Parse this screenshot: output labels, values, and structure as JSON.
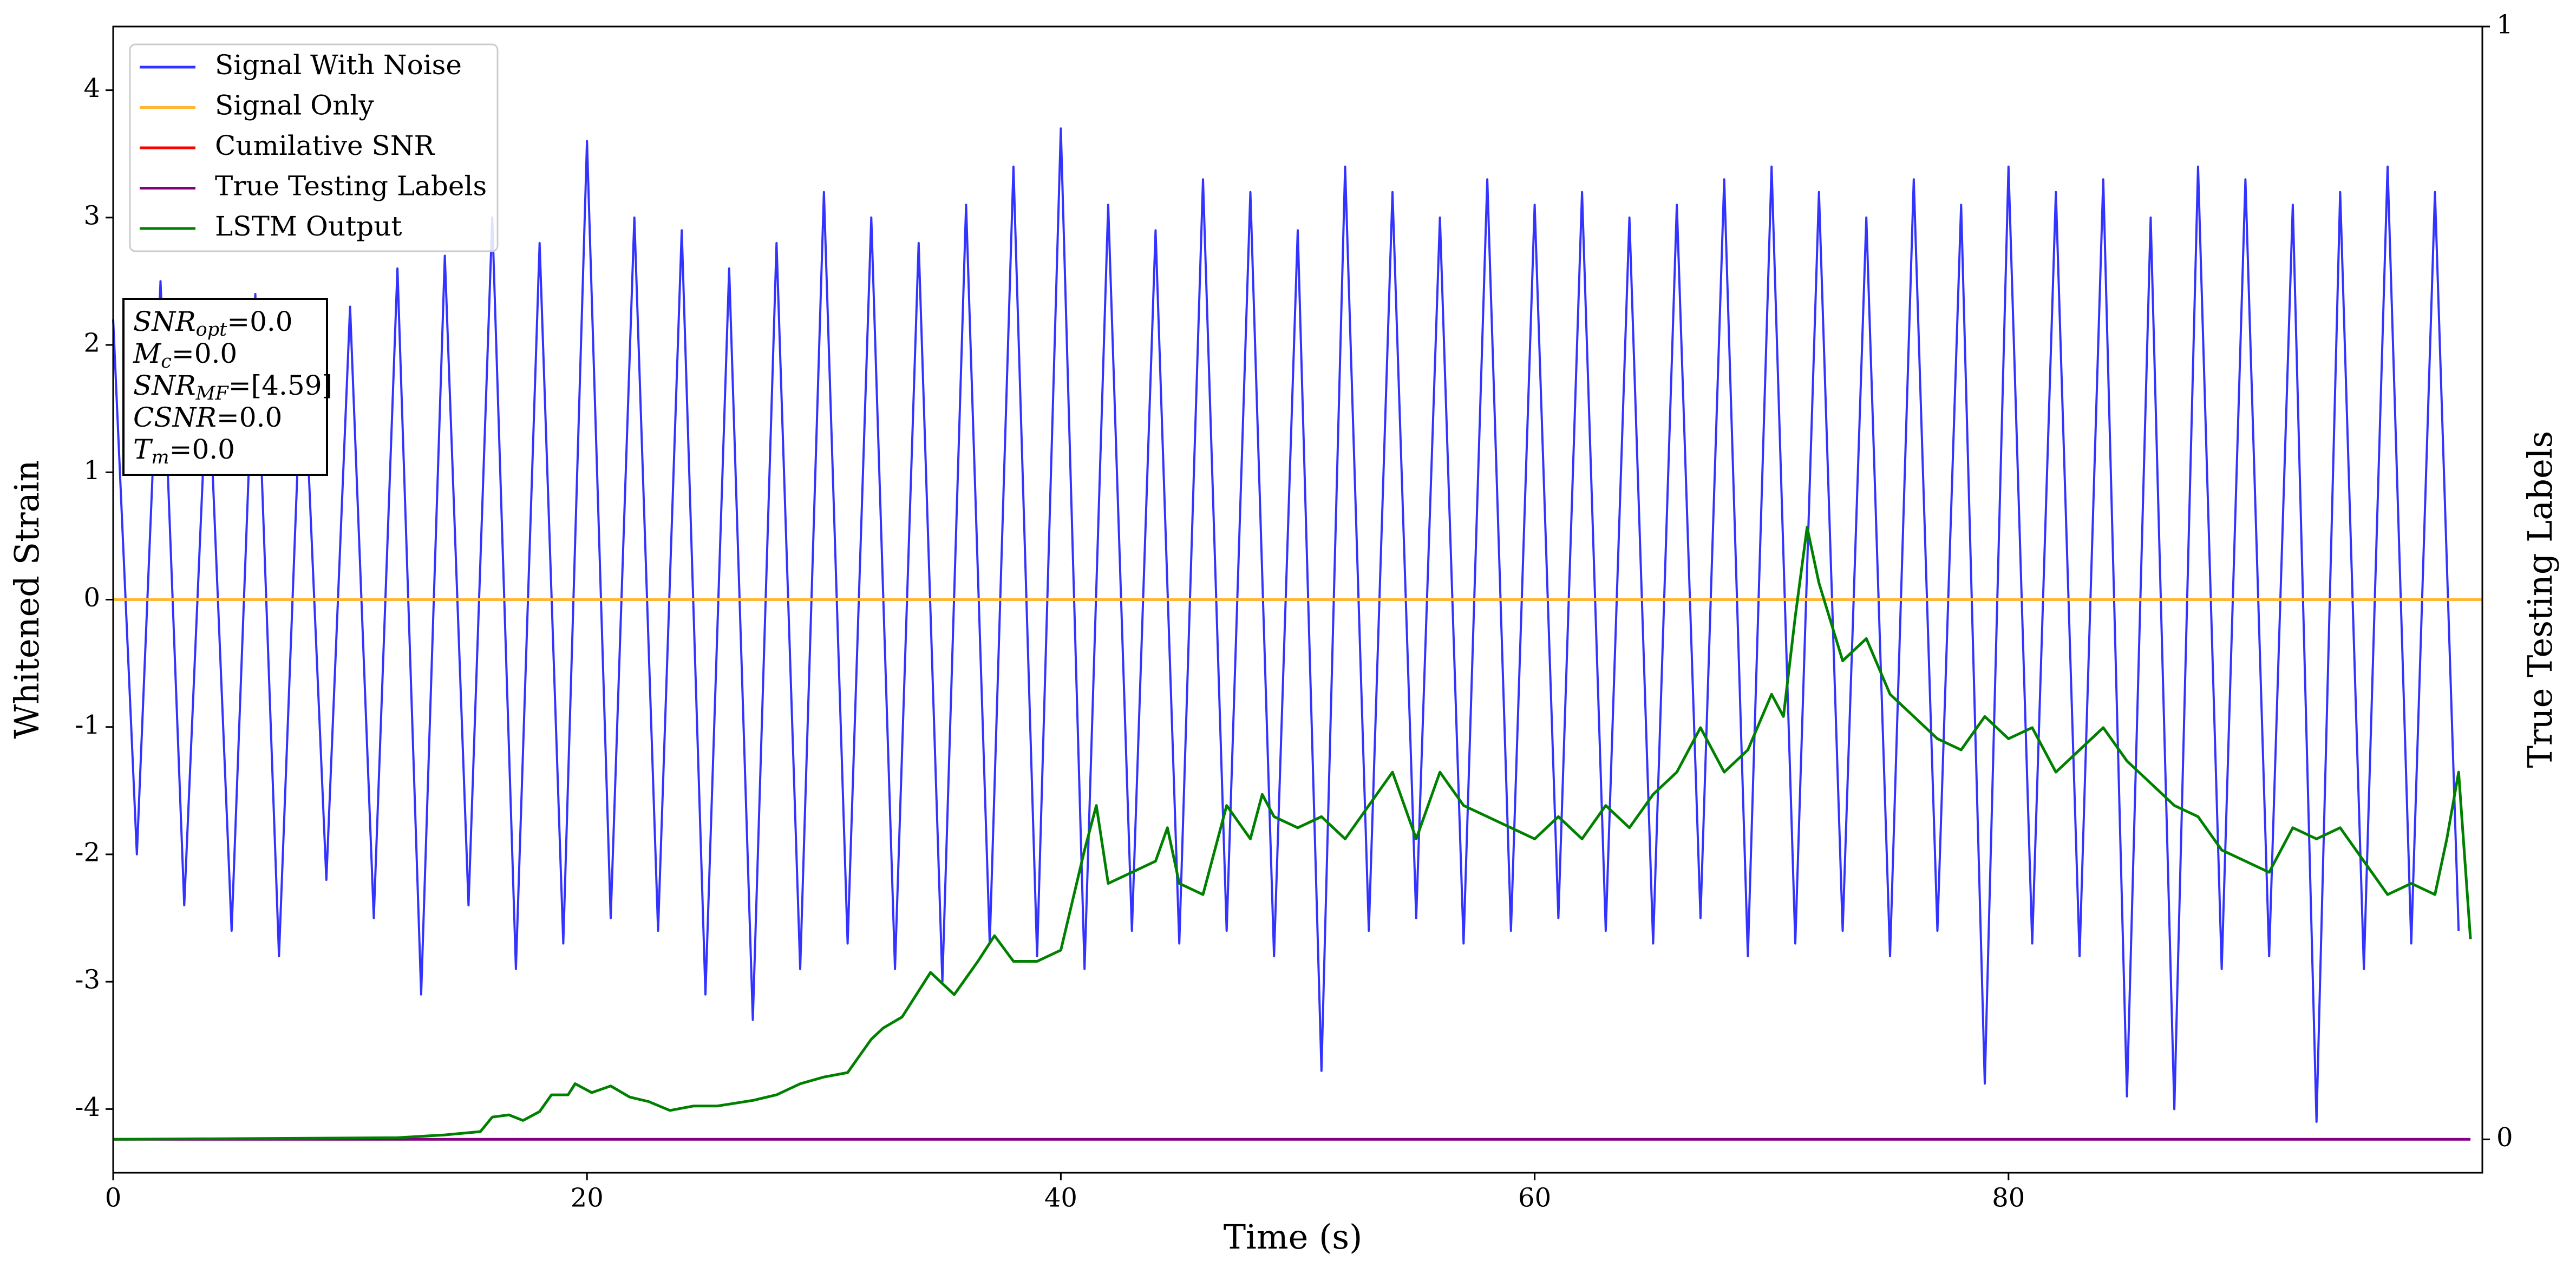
{
  "chart_data": {
    "type": "line",
    "xlabel": "Time (s)",
    "ylabel": "Whitened Strain",
    "y2label": "True Testing Labels",
    "xlim": [
      0,
      100
    ],
    "xticks": [
      0,
      20,
      40,
      60,
      80
    ],
    "ylim": [
      -4.5,
      4.5
    ],
    "yticks": [
      -4,
      -3,
      -2,
      -1,
      0,
      1,
      2,
      3,
      4
    ],
    "y2lim": [
      -0.03,
      1
    ],
    "y2ticks": [
      0,
      1
    ],
    "legend": "upper left",
    "annotations": [
      {
        "base": "SNR",
        "sub": "opt",
        "rest": "=0.0"
      },
      {
        "base": "M",
        "sub": "c",
        "rest": "=0.0"
      },
      {
        "base": "SNR",
        "sub": "MF",
        "rest": "=[4.59]"
      },
      {
        "base": "CSNR",
        "sub": null,
        "rest": "=0.0"
      },
      {
        "base": "T",
        "sub": "m",
        "rest": "=0.0"
      }
    ],
    "series": [
      {
        "name": "Signal With Noise",
        "color": "#3333ff",
        "axis": "y",
        "x": [
          0,
          1,
          2,
          3,
          4,
          5,
          6,
          7,
          8,
          9,
          10,
          11,
          12,
          13,
          14,
          15,
          16,
          17,
          18,
          19,
          20,
          21,
          22,
          23,
          24,
          25,
          26,
          27,
          28,
          29,
          30,
          31,
          32,
          33,
          34,
          35,
          36,
          37,
          38,
          39,
          40,
          41,
          42,
          43,
          44,
          45,
          46,
          47,
          48,
          49,
          50,
          51,
          52,
          53,
          54,
          55,
          56,
          57,
          58,
          59,
          60,
          61,
          62,
          63,
          64,
          65,
          66,
          67,
          68,
          69,
          70,
          71,
          72,
          73,
          74,
          75,
          76,
          77,
          78,
          79,
          80,
          81,
          82,
          83,
          84,
          85,
          86,
          87,
          88,
          89,
          90,
          91,
          92,
          93,
          94,
          95,
          96,
          97,
          98,
          99
        ],
        "values": [
          2.2,
          -2.0,
          2.5,
          -2.4,
          1.9,
          -2.6,
          2.4,
          -2.8,
          2.1,
          -2.2,
          2.3,
          -2.5,
          2.6,
          -3.1,
          2.7,
          -2.4,
          3.0,
          -2.9,
          2.8,
          -2.7,
          3.6,
          -2.5,
          3.0,
          -2.6,
          2.9,
          -3.1,
          2.6,
          -3.3,
          2.8,
          -2.9,
          3.2,
          -2.7,
          3.0,
          -2.9,
          2.8,
          -3.0,
          3.1,
          -2.7,
          3.4,
          -2.8,
          3.7,
          -2.9,
          3.1,
          -2.6,
          2.9,
          -2.7,
          3.3,
          -2.6,
          3.2,
          -2.8,
          2.9,
          -3.7,
          3.4,
          -2.6,
          3.2,
          -2.5,
          3.0,
          -2.7,
          3.3,
          -2.6,
          3.1,
          -2.5,
          3.2,
          -2.6,
          3.0,
          -2.7,
          3.1,
          -2.5,
          3.3,
          -2.8,
          3.4,
          -2.7,
          3.2,
          -2.6,
          3.0,
          -2.8,
          3.3,
          -2.6,
          3.1,
          -3.8,
          3.4,
          -2.7,
          3.2,
          -2.8,
          3.3,
          -3.9,
          3.0,
          -4.0,
          3.4,
          -2.9,
          3.3,
          -2.8,
          3.1,
          -4.1,
          3.2,
          -2.9,
          3.4,
          -2.7,
          3.2,
          -2.6
        ]
      },
      {
        "name": "Signal Only",
        "color": "#ffb733",
        "axis": "y",
        "x": [
          0,
          100
        ],
        "values": [
          0,
          0
        ]
      },
      {
        "name": "Cumilative SNR",
        "color": "#ff0000",
        "axis": "y",
        "x": [
          0,
          100
        ],
        "values": [
          0,
          0
        ]
      },
      {
        "name": "True Testing Labels",
        "color": "#800080",
        "axis": "y2",
        "x": [
          0,
          99.5
        ],
        "values": [
          0,
          0
        ]
      },
      {
        "name": "LSTM Output",
        "color": "#008000",
        "axis": "y2",
        "x": [
          0,
          12,
          14,
          15.5,
          16,
          16.7,
          17.3,
          18,
          18.5,
          19.2,
          19.5,
          20.2,
          21,
          21.8,
          22.6,
          23.5,
          24.5,
          25.5,
          27,
          28,
          29,
          30,
          31,
          31.5,
          32,
          32.5,
          33.3,
          34.5,
          35.5,
          36.5,
          37.2,
          38,
          39,
          40,
          41,
          41.5,
          42,
          43,
          44,
          44.5,
          45,
          46,
          46.5,
          47,
          48,
          48.5,
          49,
          50,
          51,
          52,
          53,
          54,
          55,
          56,
          57,
          58,
          59,
          60,
          61,
          62,
          63,
          64,
          65,
          66,
          67,
          68,
          69,
          70,
          70.5,
          71,
          71.5,
          72,
          73,
          74,
          75,
          76,
          77,
          78,
          79,
          80,
          81,
          82,
          83,
          84,
          85,
          86,
          87,
          88,
          89,
          90,
          91,
          92,
          93,
          94,
          95,
          96,
          97,
          98,
          98.5,
          99,
          99.5
        ],
        "values": [
          0,
          0.0015,
          0.004,
          0.007,
          0.02,
          0.022,
          0.017,
          0.025,
          0.04,
          0.04,
          0.05,
          0.042,
          0.048,
          0.038,
          0.034,
          0.026,
          0.03,
          0.03,
          0.035,
          0.04,
          0.05,
          0.056,
          0.06,
          0.075,
          0.09,
          0.1,
          0.11,
          0.15,
          0.13,
          0.16,
          0.183,
          0.16,
          0.16,
          0.17,
          0.26,
          0.3,
          0.23,
          0.24,
          0.25,
          0.28,
          0.23,
          0.22,
          0.26,
          0.3,
          0.27,
          0.31,
          0.29,
          0.28,
          0.29,
          0.27,
          0.3,
          0.33,
          0.27,
          0.33,
          0.3,
          0.29,
          0.28,
          0.27,
          0.29,
          0.27,
          0.3,
          0.28,
          0.31,
          0.33,
          0.37,
          0.33,
          0.35,
          0.4,
          0.38,
          0.47,
          0.55,
          0.5,
          0.43,
          0.45,
          0.4,
          0.38,
          0.36,
          0.35,
          0.38,
          0.36,
          0.37,
          0.33,
          0.35,
          0.37,
          0.34,
          0.32,
          0.3,
          0.29,
          0.26,
          0.25,
          0.24,
          0.28,
          0.27,
          0.28,
          0.25,
          0.22,
          0.23,
          0.22,
          0.27,
          0.33,
          0.18
        ]
      }
    ]
  }
}
